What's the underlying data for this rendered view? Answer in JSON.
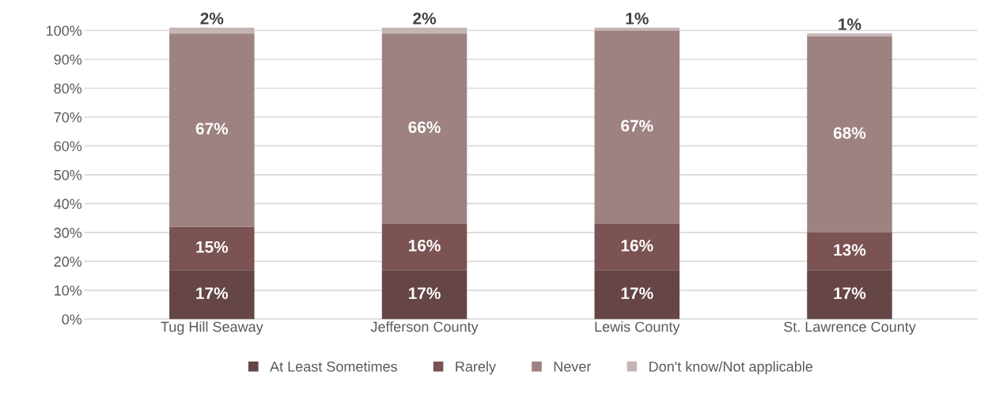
{
  "chart_data": {
    "type": "bar",
    "stacked": true,
    "categories": [
      "Tug Hill Seaway",
      "Jefferson County",
      "Lewis County",
      "St. Lawrence County"
    ],
    "series": [
      {
        "name": "At Least Sometimes",
        "color": "#654545",
        "values": [
          17,
          17,
          17,
          17
        ],
        "value_labels": [
          "17%",
          "17%",
          "17%",
          "17%"
        ]
      },
      {
        "name": "Rarely",
        "color": "#7b5353",
        "values": [
          15,
          16,
          16,
          13
        ],
        "value_labels": [
          "15%",
          "16%",
          "16%",
          "13%"
        ]
      },
      {
        "name": "Never",
        "color": "#9d8281",
        "values": [
          67,
          66,
          67,
          68
        ],
        "value_labels": [
          "67%",
          "66%",
          "67%",
          "68%"
        ]
      },
      {
        "name": "Don't know/Not applicable",
        "color": "#c4b5b5",
        "values": [
          2,
          2,
          1,
          1
        ],
        "value_labels": [
          "2%",
          "2%",
          "1%",
          "1%"
        ]
      }
    ],
    "ylim": [
      0,
      101
    ],
    "yticks": [
      {
        "value": 0,
        "label": "0%"
      },
      {
        "value": 10,
        "label": "10%"
      },
      {
        "value": 20,
        "label": "20%"
      },
      {
        "value": 30,
        "label": "30%"
      },
      {
        "value": 40,
        "label": "40%"
      },
      {
        "value": 50,
        "label": "50%"
      },
      {
        "value": 60,
        "label": "60%"
      },
      {
        "value": 70,
        "label": "70%"
      },
      {
        "value": 80,
        "label": "80%"
      },
      {
        "value": 90,
        "label": "90%"
      },
      {
        "value": 100,
        "label": "100%"
      }
    ],
    "grid": "y",
    "legend": "bottom"
  }
}
